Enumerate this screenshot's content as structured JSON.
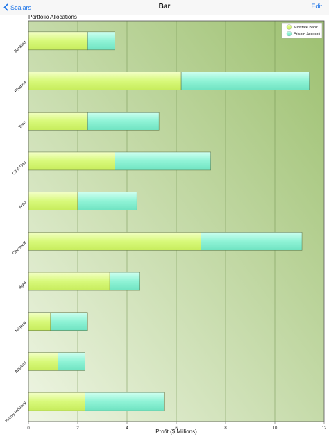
{
  "nav": {
    "back_label": "Scalars",
    "title": "Bar",
    "edit_label": "Edit"
  },
  "colors": {
    "accent": "#1a73e8",
    "series_1": "#d8f97a",
    "series_2": "#8ff3d6",
    "plot_bg_dark": "#9dc070",
    "plot_bg_light": "#eef5e3"
  },
  "chart_data": {
    "type": "bar",
    "orientation": "horizontal",
    "stacked": true,
    "title": "Portfolio Allocations",
    "xlabel": "Profit ($ Millions)",
    "ylabel": "",
    "xlim": [
      0,
      12
    ],
    "xticks": [
      "0",
      "2",
      "4",
      "6",
      "8",
      "10",
      "12"
    ],
    "grid": true,
    "legend_position": "top-right",
    "categories": [
      "Banking",
      "Pharma",
      "Tech",
      "Oil & Gas",
      "Auto",
      "Chemical",
      "Agra",
      "Mineral",
      "Apparel",
      "Heavy Industry"
    ],
    "series": [
      {
        "name": "Midstate Bank",
        "values": [
          2.4,
          6.2,
          2.4,
          3.5,
          2.0,
          7.0,
          3.3,
          0.9,
          1.2,
          2.3
        ]
      },
      {
        "name": "Private Account",
        "values": [
          1.1,
          5.2,
          2.9,
          3.9,
          2.4,
          4.1,
          1.2,
          1.5,
          1.1,
          3.2
        ]
      }
    ]
  }
}
